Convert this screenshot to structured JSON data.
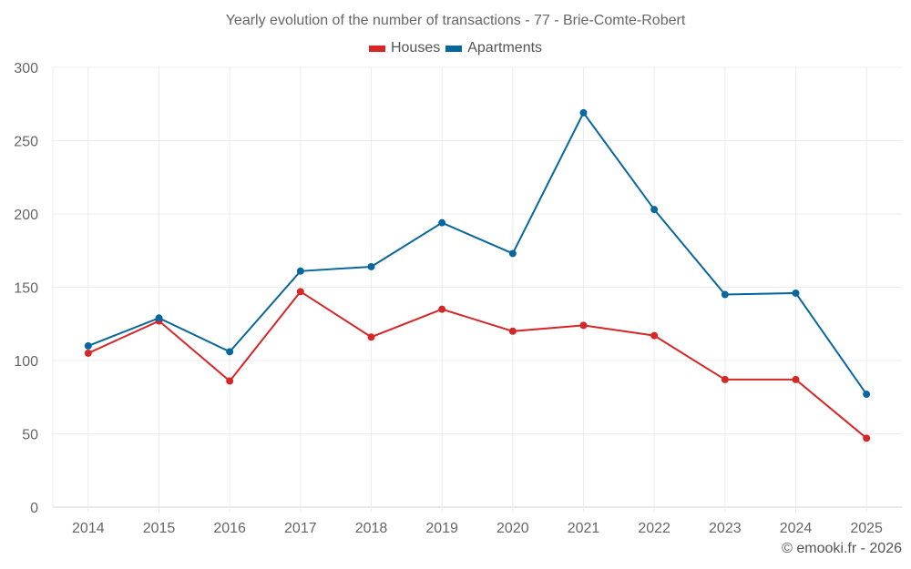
{
  "chart_data": {
    "type": "line",
    "title": "Yearly evolution of the number of transactions - 77 - Brie-Comte-Robert",
    "xlabel": "",
    "ylabel": "",
    "categories": [
      "2014",
      "2015",
      "2016",
      "2017",
      "2018",
      "2019",
      "2020",
      "2021",
      "2022",
      "2023",
      "2024",
      "2025"
    ],
    "series": [
      {
        "name": "Houses",
        "color": "#d62728",
        "values": [
          105,
          127,
          86,
          147,
          116,
          135,
          120,
          124,
          117,
          87,
          87,
          47
        ]
      },
      {
        "name": "Apartments",
        "color": "#08679c",
        "values": [
          110,
          129,
          106,
          161,
          164,
          194,
          173,
          269,
          203,
          145,
          146,
          77
        ]
      }
    ],
    "ylim": [
      0,
      300
    ],
    "yticks": [
      0,
      50,
      100,
      150,
      200,
      250,
      300
    ],
    "grid": true,
    "legend_position": "top"
  },
  "credit": "© emooki.fr - 2026"
}
